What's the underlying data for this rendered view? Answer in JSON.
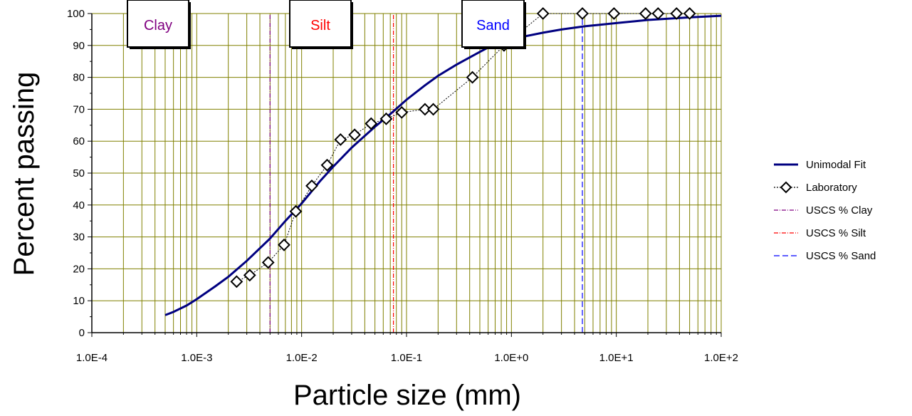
{
  "chart_data": {
    "type": "line",
    "xscale": "log",
    "xlim": [
      0.0001,
      100
    ],
    "ylim": [
      0,
      100
    ],
    "xlabel": "Particle size (mm)",
    "ylabel": "Percent passing",
    "x_tick_labels": [
      "1.0E-4",
      "1.0E-3",
      "1.0E-2",
      "1.0E-1",
      "1.0E+0",
      "1.0E+1",
      "1.0E+2"
    ],
    "y_tick_labels": [
      "0",
      "10",
      "20",
      "30",
      "40",
      "50",
      "60",
      "70",
      "80",
      "90",
      "100"
    ],
    "grid": true,
    "legend_position": "right",
    "series": [
      {
        "name": "Unimodal Fit",
        "color": "#000080",
        "style": "solid",
        "marker": "none",
        "x": [
          0.0005,
          0.0006,
          0.0008,
          0.001,
          0.0015,
          0.002,
          0.003,
          0.005,
          0.007,
          0.01,
          0.015,
          0.02,
          0.03,
          0.05,
          0.07,
          0.1,
          0.15,
          0.2,
          0.3,
          0.5,
          0.7,
          1,
          2,
          3,
          5,
          7,
          10,
          20,
          50,
          100
        ],
        "y": [
          5.5,
          6.5,
          8.5,
          10.5,
          14.5,
          17.5,
          22.5,
          29.5,
          35,
          40.5,
          47.5,
          52,
          58,
          64.5,
          68.5,
          73,
          77.5,
          80.5,
          84,
          88,
          90.5,
          92,
          94,
          95,
          96,
          96.5,
          97,
          98,
          98.8,
          99.3
        ]
      },
      {
        "name": "Laboratory",
        "color": "#000000",
        "style": "dotted",
        "marker": "diamond",
        "x": [
          0.0024,
          0.0032,
          0.0048,
          0.0068,
          0.0088,
          0.0125,
          0.0175,
          0.0235,
          0.032,
          0.046,
          0.064,
          0.09,
          0.15,
          0.18,
          0.425,
          0.85,
          2,
          4.75,
          9.5,
          19,
          25,
          37.5,
          50
        ],
        "y": [
          16,
          18,
          22,
          27.5,
          38,
          46,
          52.5,
          60.5,
          62,
          65.5,
          67,
          69,
          70,
          70,
          80,
          90,
          100,
          100,
          100,
          100,
          100,
          100,
          100
        ]
      },
      {
        "name": "USCS % Clay",
        "color": "#800080",
        "style": "dash-dot",
        "x": [
          0.005,
          0.005
        ],
        "y": [
          0,
          100
        ]
      },
      {
        "name": "USCS % Silt",
        "color": "#ff0000",
        "style": "dash-dot",
        "x": [
          0.075,
          0.075
        ],
        "y": [
          0,
          100
        ]
      },
      {
        "name": "USCS % Sand",
        "color": "#0000ff",
        "style": "dashed",
        "x": [
          4.75,
          4.75
        ],
        "y": [
          0,
          100
        ]
      }
    ],
    "zone_labels": [
      {
        "text": "Clay",
        "color": "#800080"
      },
      {
        "text": "Silt",
        "color": "#ff0000"
      },
      {
        "text": "Sand",
        "color": "#0000ff"
      }
    ],
    "colors": {
      "grid": "#808000",
      "axis": "#000000",
      "background": "#ffffff"
    }
  }
}
